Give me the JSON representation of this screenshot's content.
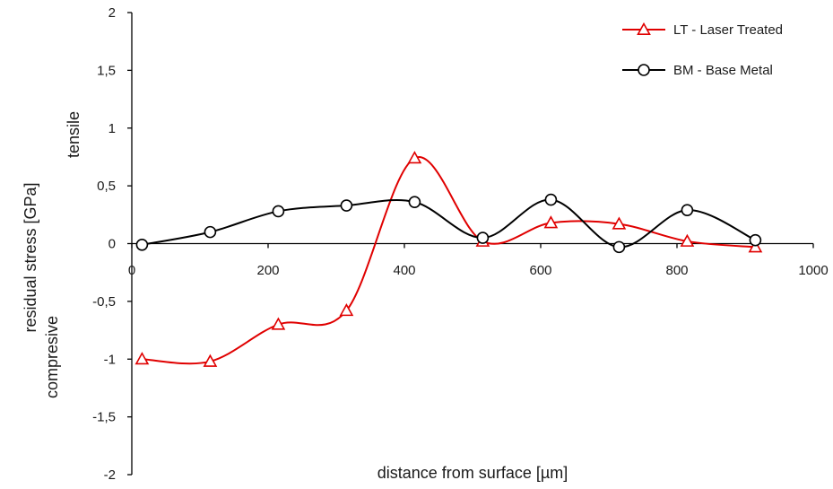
{
  "chart_data": {
    "type": "line",
    "smooth": true,
    "title": "",
    "xlabel": "distance from surface   [µm]",
    "ylabel": "residual stress   [GPa]",
    "annotations": {
      "positive": "tensile",
      "negative": "compresive"
    },
    "xlim": [
      0,
      1000
    ],
    "ylim": [
      -2,
      2
    ],
    "x_ticks": [
      "0",
      "200",
      "400",
      "600",
      "800",
      "1000"
    ],
    "y_ticks": [
      "2",
      "1,5",
      "1",
      "0,5",
      "0",
      "-0,5",
      "-1",
      "-1,5",
      "-2"
    ],
    "grid": false,
    "legend_position": "top-right",
    "series": [
      {
        "name": "LT - Laser Treated",
        "color": "#e00000",
        "marker": "triangle",
        "x": [
          15,
          115,
          215,
          315,
          415,
          515,
          615,
          715,
          815,
          915
        ],
        "y": [
          -1.0,
          -1.02,
          -0.7,
          -0.58,
          0.74,
          0.02,
          0.18,
          0.17,
          0.02,
          -0.03
        ]
      },
      {
        "name": "BM - Base Metal",
        "color": "#000000",
        "marker": "circle",
        "x": [
          15,
          115,
          215,
          315,
          415,
          515,
          615,
          715,
          815,
          915
        ],
        "y": [
          -0.01,
          0.1,
          0.28,
          0.33,
          0.36,
          0.05,
          0.38,
          -0.03,
          0.29,
          0.03
        ]
      }
    ]
  }
}
